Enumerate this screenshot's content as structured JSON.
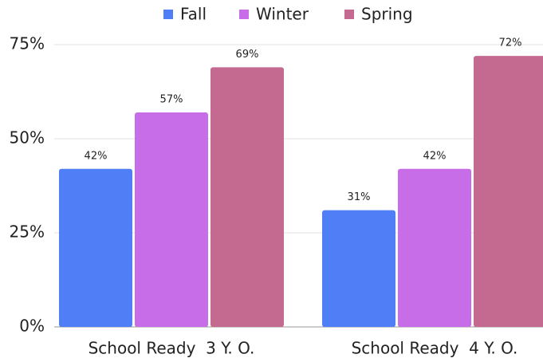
{
  "chart_data": {
    "type": "bar",
    "categories": [
      "School Ready  3 Y. O.",
      "School Ready  4 Y. O."
    ],
    "series": [
      {
        "name": "Fall",
        "color": "#4f7ef7",
        "values": [
          42,
          31
        ],
        "value_labels": [
          "42%",
          "31%"
        ]
      },
      {
        "name": "Winter",
        "color": "#c86de8",
        "values": [
          57,
          42
        ],
        "value_labels": [
          "57%",
          "42%"
        ]
      },
      {
        "name": "Spring",
        "color": "#c4698f",
        "values": [
          69,
          72
        ],
        "value_labels": [
          "69%",
          "72%"
        ]
      }
    ],
    "ylim": [
      0,
      75
    ],
    "yticks": [
      {
        "value": 0,
        "label": "0%"
      },
      {
        "value": 25,
        "label": "25%"
      },
      {
        "value": 50,
        "label": "50%"
      },
      {
        "value": 75,
        "label": "75%"
      }
    ],
    "grid": true,
    "legend": "top"
  }
}
